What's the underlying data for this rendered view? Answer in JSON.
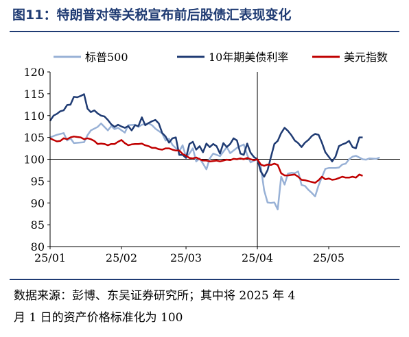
{
  "header": {
    "title": "图11：特朗普对等关税宣布前后股债汇表现变化"
  },
  "footer": {
    "source_line1": "数据来源：彭博、东吴证券研究所；其中将 2025 年 4",
    "source_line2": "月 1 日的资产价格标准化为 100"
  },
  "colors": {
    "accent": "#1f3b73"
  },
  "chart_data": {
    "type": "line",
    "title": "",
    "xlabel": "",
    "ylabel": "",
    "x_unit": "trading day",
    "x_domain": [
      0,
      103
    ],
    "ylim": [
      80,
      120
    ],
    "yticks": [
      80,
      85,
      90,
      95,
      100,
      105,
      110,
      115,
      120
    ],
    "xticks": [
      {
        "label": "25/01",
        "x": 0
      },
      {
        "label": "25/02",
        "x": 21
      },
      {
        "label": "25/03",
        "x": 40
      },
      {
        "label": "25/04",
        "x": 61
      },
      {
        "label": "25/05",
        "x": 82
      }
    ],
    "reference_lines": {
      "vertical_x": 61,
      "horizontal_y": 100
    },
    "grid": false,
    "legend_position": "top",
    "series": [
      {
        "name": "标普500",
        "color": "#98b1d6",
        "values": [
          [
            0,
            105.0
          ],
          [
            2,
            105.6
          ],
          [
            4,
            106.0
          ],
          [
            5,
            104.3
          ],
          [
            6,
            104.8
          ],
          [
            7,
            103.7
          ],
          [
            10,
            103.9
          ],
          [
            11,
            105.5
          ],
          [
            12,
            106.6
          ],
          [
            14,
            107.4
          ],
          [
            15,
            108.2
          ],
          [
            17,
            106.6
          ],
          [
            18,
            107.6
          ],
          [
            19,
            106.9
          ],
          [
            20,
            107.2
          ],
          [
            22,
            106.1
          ],
          [
            23,
            107.8
          ],
          [
            25,
            107.9
          ],
          [
            26,
            107.4
          ],
          [
            27,
            107.9
          ],
          [
            29,
            108.2
          ],
          [
            30,
            107.8
          ],
          [
            31,
            107.0
          ],
          [
            33,
            105.9
          ],
          [
            34,
            104.3
          ],
          [
            35,
            104.7
          ],
          [
            36,
            103.3
          ],
          [
            38,
            101.8
          ],
          [
            39,
            103.2
          ],
          [
            40,
            100.5
          ],
          [
            41,
            101.3
          ],
          [
            42,
            102.5
          ],
          [
            43,
            99.5
          ],
          [
            44,
            100.2
          ],
          [
            45,
            99.0
          ],
          [
            46,
            97.7
          ],
          [
            47,
            100.2
          ],
          [
            48,
            101.3
          ],
          [
            50,
            100.7
          ],
          [
            52,
            102.8
          ],
          [
            53,
            101.4
          ],
          [
            55,
            102.6
          ],
          [
            57,
            103.4
          ],
          [
            58,
            101.0
          ],
          [
            59,
            99.3
          ],
          [
            61,
            100.0
          ],
          [
            62,
            98.4
          ],
          [
            63,
            92.9
          ],
          [
            64,
            90.1
          ],
          [
            65,
            90.0
          ],
          [
            66,
            90.1
          ],
          [
            67,
            88.5
          ],
          [
            68,
            96.0
          ],
          [
            69,
            94.2
          ],
          [
            70,
            96.7
          ],
          [
            71,
            96.9
          ],
          [
            72,
            96.8
          ],
          [
            73,
            97.2
          ],
          [
            74,
            94.1
          ],
          [
            75,
            93.9
          ],
          [
            76,
            93.0
          ],
          [
            77,
            92.3
          ],
          [
            78,
            91.5
          ],
          [
            79,
            94.0
          ],
          [
            80,
            95.9
          ],
          [
            81,
            97.8
          ],
          [
            82,
            98.0
          ],
          [
            83,
            98.0
          ],
          [
            84,
            98.0
          ],
          [
            85,
            98.1
          ],
          [
            86,
            98.8
          ],
          [
            87,
            99.0
          ],
          [
            88,
            100.0
          ],
          [
            89,
            100.6
          ],
          [
            90,
            100.8
          ],
          [
            91,
            100.4
          ],
          [
            92,
            100.0
          ],
          [
            93,
            99.9
          ],
          [
            94,
            100.2
          ],
          [
            96,
            100.1
          ],
          [
            97,
            100.4
          ]
        ]
      },
      {
        "name": "10年期美债利率",
        "color": "#1f3b73",
        "values": [
          [
            0,
            108.8
          ],
          [
            1,
            110.0
          ],
          [
            2,
            110.4
          ],
          [
            3,
            111.0
          ],
          [
            4,
            111.2
          ],
          [
            5,
            112.4
          ],
          [
            6,
            112.5
          ],
          [
            7,
            114.3
          ],
          [
            8,
            114.2
          ],
          [
            9,
            114.5
          ],
          [
            10,
            114.9
          ],
          [
            11,
            111.6
          ],
          [
            12,
            110.8
          ],
          [
            13,
            111.2
          ],
          [
            14,
            110.5
          ],
          [
            15,
            110.0
          ],
          [
            16,
            109.8
          ],
          [
            17,
            109.0
          ],
          [
            18,
            108.0
          ],
          [
            19,
            107.4
          ],
          [
            20,
            107.9
          ],
          [
            21,
            107.5
          ],
          [
            22,
            107.2
          ],
          [
            23,
            107.6
          ],
          [
            24,
            106.6
          ],
          [
            25,
            107.8
          ],
          [
            26,
            107.6
          ],
          [
            27,
            109.6
          ],
          [
            28,
            107.8
          ],
          [
            29,
            108.3
          ],
          [
            30,
            108.7
          ],
          [
            31,
            109.0
          ],
          [
            32,
            108.2
          ],
          [
            33,
            106.0
          ],
          [
            34,
            105.2
          ],
          [
            35,
            103.8
          ],
          [
            36,
            104.8
          ],
          [
            37,
            105.0
          ],
          [
            38,
            101.0
          ],
          [
            39,
            101.0
          ],
          [
            40,
            100.3
          ],
          [
            41,
            103.5
          ],
          [
            42,
            104.0
          ],
          [
            43,
            102.2
          ],
          [
            44,
            103.0
          ],
          [
            45,
            101.6
          ],
          [
            46,
            103.6
          ],
          [
            47,
            102.8
          ],
          [
            48,
            103.5
          ],
          [
            49,
            103.0
          ],
          [
            50,
            101.3
          ],
          [
            51,
            103.7
          ],
          [
            52,
            102.8
          ],
          [
            53,
            103.5
          ],
          [
            54,
            104.8
          ],
          [
            55,
            104.3
          ],
          [
            56,
            101.3
          ],
          [
            57,
            101.0
          ],
          [
            58,
            103.6
          ],
          [
            59,
            101.5
          ],
          [
            60,
            100.5
          ],
          [
            61,
            100.0
          ],
          [
            62,
            97.2
          ],
          [
            63,
            96.0
          ],
          [
            64,
            97.5
          ],
          [
            65,
            100.5
          ],
          [
            66,
            103.5
          ],
          [
            67,
            104.2
          ],
          [
            68,
            106.0
          ],
          [
            69,
            107.2
          ],
          [
            70,
            106.5
          ],
          [
            71,
            105.5
          ],
          [
            72,
            104.3
          ],
          [
            73,
            103.7
          ],
          [
            74,
            102.8
          ],
          [
            75,
            103.8
          ],
          [
            76,
            104.4
          ],
          [
            77,
            105.3
          ],
          [
            78,
            105.8
          ],
          [
            79,
            105.6
          ],
          [
            80,
            103.8
          ],
          [
            81,
            101.6
          ],
          [
            82,
            100.6
          ],
          [
            83,
            99.5
          ],
          [
            84,
            100.6
          ],
          [
            85,
            103.0
          ],
          [
            86,
            103.4
          ],
          [
            87,
            103.7
          ],
          [
            88,
            104.2
          ],
          [
            89,
            102.8
          ],
          [
            90,
            102.5
          ],
          [
            91,
            105.0
          ],
          [
            92,
            105.0
          ]
        ]
      },
      {
        "name": "美元指数",
        "color": "#c00000",
        "values": [
          [
            0,
            104.8
          ],
          [
            1,
            104.4
          ],
          [
            2,
            104.1
          ],
          [
            3,
            104.2
          ],
          [
            4,
            104.8
          ],
          [
            5,
            104.6
          ],
          [
            6,
            105.0
          ],
          [
            7,
            105.2
          ],
          [
            8,
            105.1
          ],
          [
            9,
            105.0
          ],
          [
            10,
            104.6
          ],
          [
            11,
            104.8
          ],
          [
            12,
            104.6
          ],
          [
            13,
            104.2
          ],
          [
            14,
            103.5
          ],
          [
            15,
            103.6
          ],
          [
            16,
            103.5
          ],
          [
            17,
            103.2
          ],
          [
            18,
            103.5
          ],
          [
            19,
            103.5
          ],
          [
            20,
            104.0
          ],
          [
            21,
            104.4
          ],
          [
            22,
            103.7
          ],
          [
            23,
            103.2
          ],
          [
            24,
            103.4
          ],
          [
            25,
            103.5
          ],
          [
            26,
            103.5
          ],
          [
            27,
            103.6
          ],
          [
            28,
            103.2
          ],
          [
            29,
            103.0
          ],
          [
            30,
            102.6
          ],
          [
            31,
            102.6
          ],
          [
            32,
            102.3
          ],
          [
            33,
            102.2
          ],
          [
            34,
            102.5
          ],
          [
            35,
            102.5
          ],
          [
            36,
            102.2
          ],
          [
            37,
            102.0
          ],
          [
            38,
            102.0
          ],
          [
            39,
            101.2
          ],
          [
            40,
            100.8
          ],
          [
            41,
            100.3
          ],
          [
            42,
            100.2
          ],
          [
            43,
            100.4
          ],
          [
            44,
            100.0
          ],
          [
            45,
            99.7
          ],
          [
            46,
            99.7
          ],
          [
            47,
            99.5
          ],
          [
            48,
            99.6
          ],
          [
            49,
            99.7
          ],
          [
            50,
            99.5
          ],
          [
            51,
            99.7
          ],
          [
            52,
            99.9
          ],
          [
            53,
            99.8
          ],
          [
            54,
            100.1
          ],
          [
            55,
            100.0
          ],
          [
            56,
            100.2
          ],
          [
            57,
            100.0
          ],
          [
            58,
            100.3
          ],
          [
            59,
            100.0
          ],
          [
            60,
            99.8
          ],
          [
            61,
            100.0
          ],
          [
            62,
            98.8
          ],
          [
            63,
            98.5
          ],
          [
            64,
            98.8
          ],
          [
            65,
            98.7
          ],
          [
            66,
            99.0
          ],
          [
            67,
            98.7
          ],
          [
            68,
            96.8
          ],
          [
            69,
            96.3
          ],
          [
            70,
            96.3
          ],
          [
            71,
            96.4
          ],
          [
            72,
            96.5
          ],
          [
            73,
            96.0
          ],
          [
            74,
            95.3
          ],
          [
            75,
            95.2
          ],
          [
            76,
            95.0
          ],
          [
            77,
            94.8
          ],
          [
            78,
            94.6
          ],
          [
            79,
            95.2
          ],
          [
            80,
            96.0
          ],
          [
            81,
            95.4
          ],
          [
            82,
            95.6
          ],
          [
            83,
            95.3
          ],
          [
            84,
            95.4
          ],
          [
            85,
            95.7
          ],
          [
            86,
            96.0
          ],
          [
            87,
            95.8
          ],
          [
            88,
            95.8
          ],
          [
            89,
            96.0
          ],
          [
            90,
            95.8
          ],
          [
            91,
            96.5
          ],
          [
            92,
            96.2
          ]
        ]
      }
    ]
  }
}
